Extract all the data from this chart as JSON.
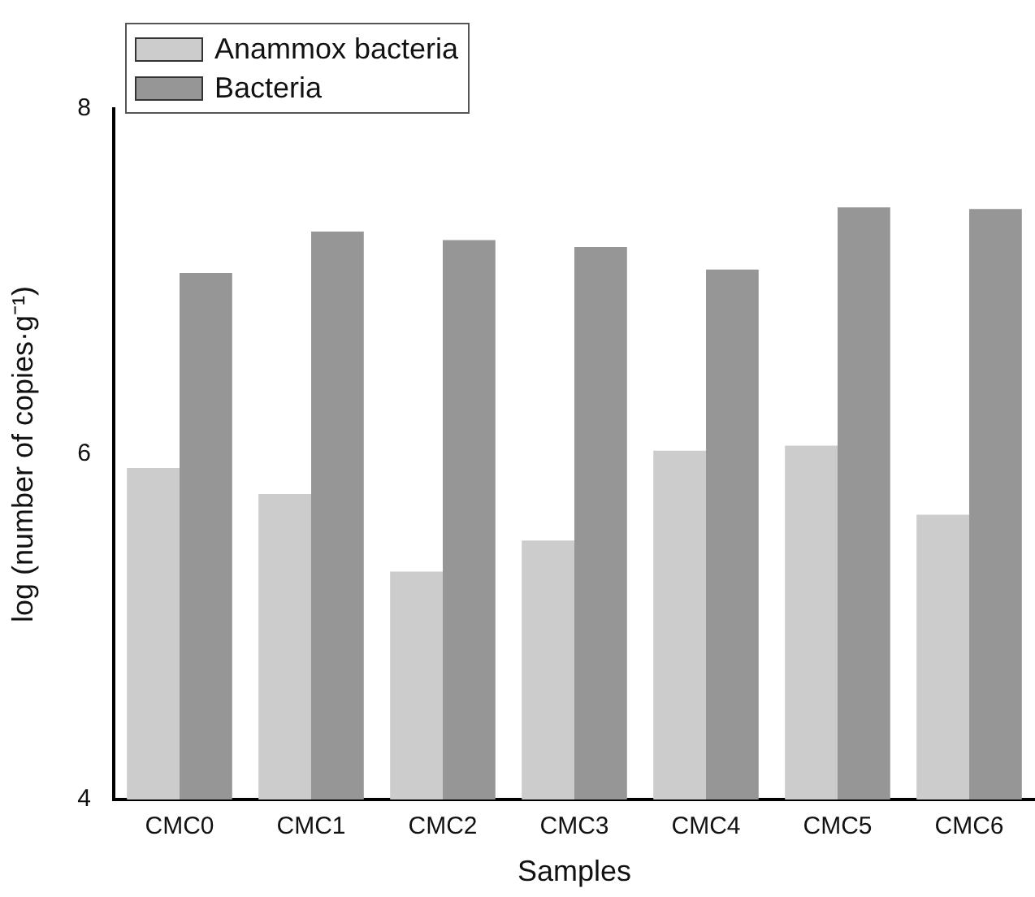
{
  "chart_data": {
    "type": "bar",
    "xlabel": "Samples",
    "ylabel": "log (number of copies·g⁻¹)",
    "categories": [
      "CMC0",
      "CMC1",
      "CMC2",
      "CMC3",
      "CMC4",
      "CMC5",
      "CMC6"
    ],
    "series": [
      {
        "name": "Anammox bacteria",
        "color": "#cccccc",
        "values": [
          5.92,
          5.77,
          5.32,
          5.5,
          6.02,
          6.05,
          5.65
        ]
      },
      {
        "name": "Bacteria",
        "color": "#969696",
        "values": [
          7.05,
          7.29,
          7.24,
          7.2,
          7.07,
          7.43,
          7.42
        ]
      }
    ],
    "ylim": [
      4,
      8
    ],
    "yticks": [
      4,
      6,
      8
    ],
    "grid": false,
    "legend": "top left"
  }
}
